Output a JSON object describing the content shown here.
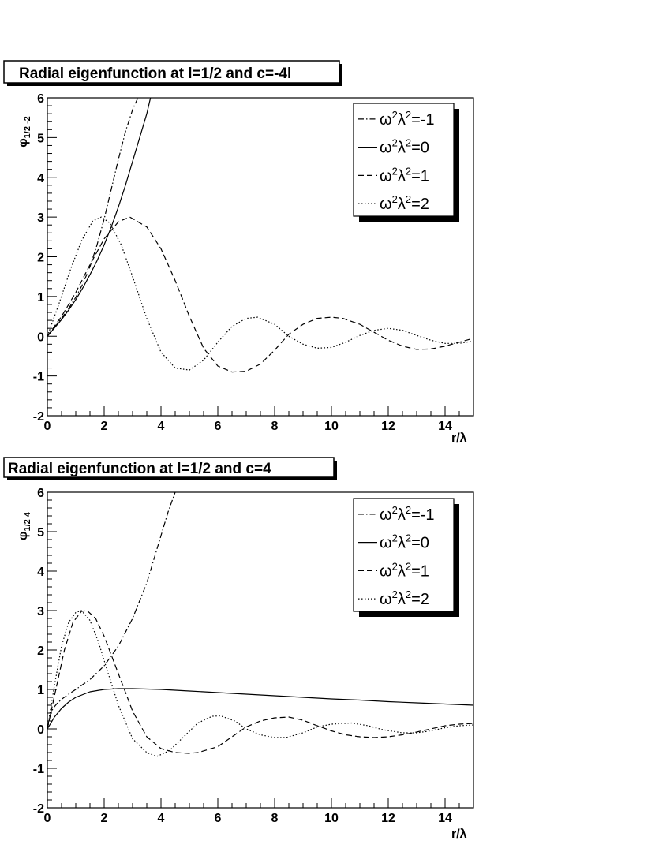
{
  "chart_data": [
    {
      "type": "line",
      "title": "Radial eigenfunction at l=1/2 and c=-4l",
      "ylabel": "φ",
      "ylabel_sub": "1/2 -2",
      "xlabel": "r/λ",
      "xlim": [
        0,
        15
      ],
      "ylim": [
        -2,
        6
      ],
      "x_ticks": [
        "0",
        "2",
        "4",
        "6",
        "8",
        "10",
        "12",
        "14"
      ],
      "y_ticks": [
        "-2",
        "-1",
        "0",
        "1",
        "2",
        "3",
        "4",
        "5",
        "6"
      ],
      "grid": false,
      "legend_position": "top-right",
      "series": [
        {
          "name": "ω²λ²=-1",
          "legend_parts": [
            "ω",
            "2",
            "λ",
            "2",
            "=-1"
          ],
          "dash": "dashdot",
          "x": [
            0,
            0.25,
            0.5,
            0.75,
            1.0,
            1.25,
            1.5,
            1.75,
            2.0,
            2.25,
            2.5,
            2.75,
            3.0,
            3.25
          ],
          "y": [
            0,
            0.22,
            0.45,
            0.7,
            0.98,
            1.32,
            1.75,
            2.3,
            2.95,
            3.7,
            4.45,
            5.15,
            5.7,
            6.1
          ]
        },
        {
          "name": "ω²λ²=0",
          "legend_parts": [
            "ω",
            "2",
            "λ",
            "2",
            "=0"
          ],
          "dash": "solid",
          "x": [
            0,
            0.25,
            0.5,
            0.75,
            1.0,
            1.25,
            1.5,
            1.75,
            2.0,
            2.25,
            2.5,
            2.75,
            3.0,
            3.25,
            3.5,
            3.63
          ],
          "y": [
            0,
            0.21,
            0.42,
            0.66,
            0.92,
            1.22,
            1.55,
            1.9,
            2.3,
            2.75,
            3.25,
            3.8,
            4.4,
            5.0,
            5.6,
            6.0
          ]
        },
        {
          "name": "ω²λ²=1",
          "legend_parts": [
            "ω",
            "2",
            "λ",
            "2",
            "=1"
          ],
          "dash": "dashed",
          "x": [
            0,
            0.5,
            1.0,
            1.5,
            2.0,
            2.5,
            2.9,
            3.5,
            4.0,
            4.5,
            5.0,
            5.5,
            6.0,
            6.5,
            7.0,
            7.5,
            8.0,
            8.5,
            9.0,
            9.5,
            10.0,
            10.4,
            11.0,
            11.5,
            12.0,
            12.5,
            13.0,
            13.5,
            14.0,
            14.5,
            15.0
          ],
          "y": [
            0,
            0.5,
            1.1,
            1.8,
            2.45,
            2.88,
            3.0,
            2.75,
            2.2,
            1.4,
            0.5,
            -0.3,
            -0.75,
            -0.9,
            -0.88,
            -0.7,
            -0.35,
            0.05,
            0.3,
            0.45,
            0.48,
            0.45,
            0.3,
            0.1,
            -0.1,
            -0.25,
            -0.33,
            -0.32,
            -0.25,
            -0.15,
            -0.05
          ]
        },
        {
          "name": "ω²λ²=2",
          "legend_parts": [
            "ω",
            "2",
            "λ",
            "2",
            "=2"
          ],
          "dash": "dotted",
          "x": [
            0,
            0.4,
            0.8,
            1.2,
            1.6,
            1.9,
            2.2,
            2.6,
            3.0,
            3.5,
            4.0,
            4.5,
            5.0,
            5.5,
            6.0,
            6.5,
            7.0,
            7.4,
            8.0,
            8.5,
            9.0,
            9.5,
            10.0,
            10.5,
            11.0,
            11.5,
            12.0,
            12.5,
            13.0,
            13.5,
            14.0,
            14.5,
            15.0
          ],
          "y": [
            0,
            0.8,
            1.65,
            2.4,
            2.9,
            3.0,
            2.85,
            2.3,
            1.5,
            0.45,
            -0.4,
            -0.8,
            -0.85,
            -0.6,
            -0.15,
            0.25,
            0.45,
            0.48,
            0.3,
            0.0,
            -0.2,
            -0.3,
            -0.28,
            -0.15,
            0.02,
            0.15,
            0.2,
            0.15,
            0.02,
            -0.1,
            -0.18,
            -0.18,
            -0.12
          ]
        }
      ]
    },
    {
      "type": "line",
      "title": "Radial eigenfunction at l=1/2 and c=4",
      "ylabel": "φ",
      "ylabel_sub": "1/2 4",
      "xlabel": "r/λ",
      "xlim": [
        0,
        15
      ],
      "ylim": [
        -2,
        6
      ],
      "x_ticks": [
        "0",
        "2",
        "4",
        "6",
        "8",
        "10",
        "12",
        "14"
      ],
      "y_ticks": [
        "-2",
        "-1",
        "0",
        "1",
        "2",
        "3",
        "4",
        "5",
        "6"
      ],
      "grid": false,
      "legend_position": "top-right",
      "series": [
        {
          "name": "ω²λ²=-1",
          "legend_parts": [
            "ω",
            "2",
            "λ",
            "2",
            "=-1"
          ],
          "dash": "dashdot",
          "x": [
            0,
            0.1,
            0.2,
            0.35,
            0.5,
            0.75,
            1.0,
            1.5,
            2.0,
            2.5,
            3.0,
            3.5,
            3.75,
            4.0,
            4.25,
            4.5
          ],
          "y": [
            0,
            0.35,
            0.52,
            0.65,
            0.75,
            0.88,
            1.0,
            1.25,
            1.6,
            2.1,
            2.8,
            3.7,
            4.3,
            4.9,
            5.5,
            6.0
          ]
        },
        {
          "name": "ω²λ²=0",
          "legend_parts": [
            "ω",
            "2",
            "λ",
            "2",
            "=0"
          ],
          "dash": "solid",
          "x": [
            0,
            0.25,
            0.5,
            0.75,
            1.0,
            1.5,
            2.0,
            2.5,
            3.0,
            4.0,
            5.0,
            6.0,
            7.0,
            8.0,
            9.0,
            10.0,
            11.0,
            12.0,
            13.0,
            14.0,
            15.0
          ],
          "y": [
            0,
            0.3,
            0.52,
            0.68,
            0.8,
            0.94,
            1.0,
            1.02,
            1.02,
            1.0,
            0.96,
            0.92,
            0.88,
            0.84,
            0.8,
            0.76,
            0.73,
            0.69,
            0.66,
            0.63,
            0.6
          ]
        },
        {
          "name": "ω²λ²=1",
          "legend_parts": [
            "ω",
            "2",
            "λ",
            "2",
            "=1"
          ],
          "dash": "dashed",
          "x": [
            0,
            0.3,
            0.6,
            0.9,
            1.2,
            1.4,
            1.7,
            2.0,
            2.5,
            3.0,
            3.5,
            4.0,
            4.5,
            5.0,
            5.3,
            6.0,
            6.5,
            7.0,
            7.5,
            8.0,
            8.5,
            9.0,
            9.5,
            10.0,
            10.5,
            11.0,
            11.5,
            12.0,
            12.5,
            13.0,
            13.5,
            14.0,
            14.5,
            15.0
          ],
          "y": [
            0,
            1.0,
            2.0,
            2.7,
            2.98,
            3.0,
            2.8,
            2.35,
            1.4,
            0.45,
            -0.2,
            -0.5,
            -0.6,
            -0.62,
            -0.6,
            -0.45,
            -0.2,
            0.05,
            0.2,
            0.28,
            0.3,
            0.22,
            0.08,
            -0.05,
            -0.15,
            -0.2,
            -0.22,
            -0.2,
            -0.15,
            -0.08,
            0.0,
            0.08,
            0.12,
            0.14
          ]
        },
        {
          "name": "ω²λ²=2",
          "legend_parts": [
            "ω",
            "2",
            "λ",
            "2",
            "=2"
          ],
          "dash": "dotted",
          "x": [
            0,
            0.25,
            0.5,
            0.75,
            1.0,
            1.2,
            1.5,
            1.8,
            2.1,
            2.5,
            3.0,
            3.5,
            3.85,
            4.3,
            4.8,
            5.3,
            5.8,
            6.1,
            6.6,
            7.0,
            7.5,
            8.0,
            8.4,
            9.0,
            9.5,
            10.0,
            10.7,
            11.3,
            11.8,
            12.5,
            13.0,
            13.5,
            14.0,
            14.5,
            15.0
          ],
          "y": [
            0,
            1.1,
            2.1,
            2.7,
            2.95,
            3.0,
            2.75,
            2.2,
            1.5,
            0.6,
            -0.25,
            -0.6,
            -0.7,
            -0.55,
            -0.2,
            0.15,
            0.32,
            0.33,
            0.2,
            0.0,
            -0.15,
            -0.22,
            -0.22,
            -0.1,
            0.05,
            0.12,
            0.15,
            0.08,
            -0.02,
            -0.1,
            -0.1,
            -0.05,
            0.03,
            0.08,
            0.1
          ]
        }
      ]
    }
  ]
}
